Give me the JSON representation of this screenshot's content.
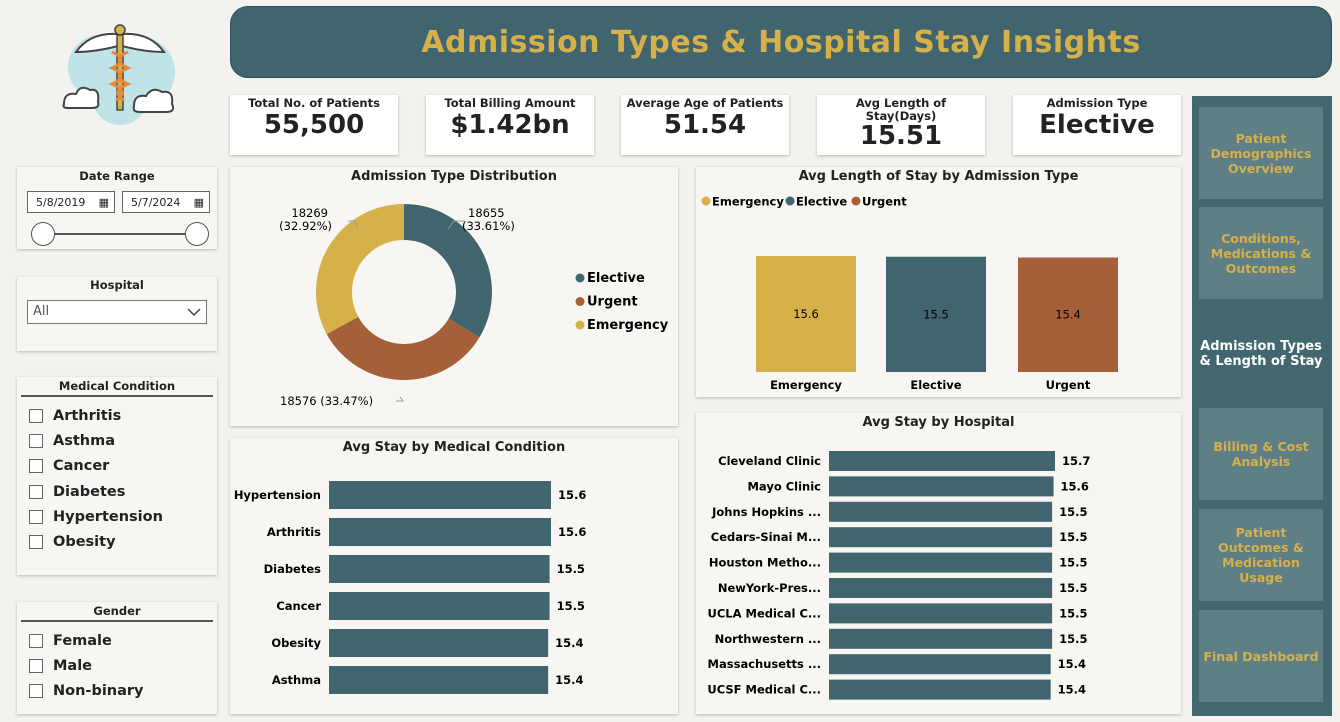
{
  "title": "Admission Types & Hospital Stay Insights",
  "colors": {
    "teal": "#41656e",
    "gold": "#d6b14a",
    "rust": "#a5603a",
    "bg": "#f3f2ee"
  },
  "kpis": [
    {
      "label": "Total No. of Patients",
      "value": "55,500"
    },
    {
      "label": "Total Billing Amount",
      "value": "$1.42bn"
    },
    {
      "label": "Average Age of Patients",
      "value": "51.54"
    },
    {
      "label": "Avg Length of Stay(Days)",
      "value": "15.51"
    },
    {
      "label": "Admission Type",
      "value": "Elective"
    }
  ],
  "filters": {
    "date_range": {
      "title": "Date Range",
      "start": "5/8/2019",
      "end": "5/7/2024"
    },
    "hospital": {
      "title": "Hospital",
      "selected": "All"
    },
    "medical_condition": {
      "title": "Medical Condition",
      "options": [
        "Arthritis",
        "Asthma",
        "Cancer",
        "Diabetes",
        "Hypertension",
        "Obesity"
      ]
    },
    "gender": {
      "title": "Gender",
      "options": [
        "Female",
        "Male",
        "Non-binary"
      ]
    }
  },
  "nav": [
    {
      "label": "Patient Demographics Overview"
    },
    {
      "label": "Conditions, Medications & Outcomes"
    },
    {
      "label": "Admission Types & Length of Stay",
      "active": true
    },
    {
      "label": "Billing & Cost Analysis"
    },
    {
      "label": "Patient Outcomes & Medication Usage"
    },
    {
      "label": "Final Dashboard"
    }
  ],
  "chart_data": [
    {
      "type": "pie",
      "title": "Admission Type Distribution",
      "categories": [
        "Elective",
        "Urgent",
        "Emergency"
      ],
      "values": [
        18655,
        18576,
        18269
      ],
      "labels": [
        "18655 (33.61%)",
        "18576 (33.47%)",
        "18269 (32.92%)"
      ],
      "colors": [
        "#41656e",
        "#a5603a",
        "#d6b14a"
      ],
      "legend": "right"
    },
    {
      "type": "bar",
      "title": "Avg Length of Stay by Admission Type",
      "categories": [
        "Emergency",
        "Elective",
        "Urgent"
      ],
      "values": [
        15.6,
        15.5,
        15.4
      ],
      "colors": [
        "#d6b14a",
        "#41656e",
        "#a5603a"
      ],
      "legend": "top-left"
    },
    {
      "type": "bar",
      "orientation": "horizontal",
      "title": "Avg Stay by Medical Condition",
      "categories": [
        "Hypertension",
        "Arthritis",
        "Diabetes",
        "Cancer",
        "Obesity",
        "Asthma"
      ],
      "values": [
        15.6,
        15.6,
        15.5,
        15.5,
        15.4,
        15.4
      ]
    },
    {
      "type": "bar",
      "orientation": "horizontal",
      "title": "Avg Stay by Hospital",
      "categories": [
        "Cleveland Clinic",
        "Mayo Clinic",
        "Johns Hopkins ...",
        "Cedars-Sinai M...",
        "Houston Metho...",
        "NewYork-Pres...",
        "UCLA Medical C...",
        "Northwestern ...",
        "Massachusetts ...",
        "UCSF Medical C..."
      ],
      "values": [
        15.7,
        15.6,
        15.5,
        15.5,
        15.5,
        15.5,
        15.5,
        15.5,
        15.4,
        15.4
      ]
    }
  ]
}
